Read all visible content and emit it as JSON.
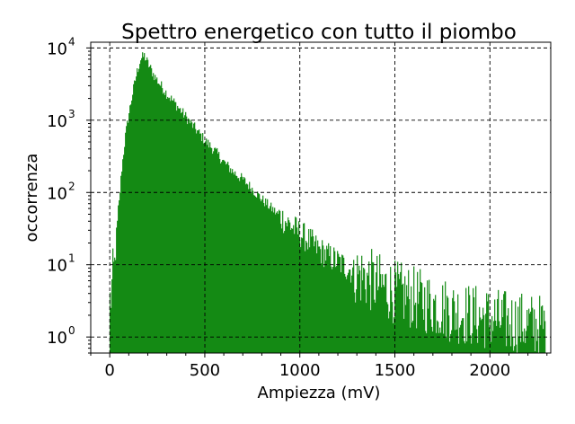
{
  "chart_data": {
    "type": "bar",
    "subtype": "histogram",
    "title": "Spettro energetico con tutto il piombo",
    "xlabel": "Ampiezza  (mV)",
    "ylabel": "occorrenza",
    "xlim": [
      -100,
      2320
    ],
    "ylim": [
      0.6,
      12000
    ],
    "yscale": "log",
    "grid": true,
    "bar_color": "#008000",
    "xticks": [
      {
        "value": 0,
        "label": "0"
      },
      {
        "value": 500,
        "label": "500"
      },
      {
        "value": 1000,
        "label": "1000"
      },
      {
        "value": 1500,
        "label": "1500"
      },
      {
        "value": 2000,
        "label": "2000"
      }
    ],
    "yticks": [
      {
        "value": 1,
        "base": "10",
        "exp": "0"
      },
      {
        "value": 10,
        "base": "10",
        "exp": "1"
      },
      {
        "value": 100,
        "base": "10",
        "exp": "2"
      },
      {
        "value": 1000,
        "base": "10",
        "exp": "3"
      },
      {
        "value": 10000,
        "base": "10",
        "exp": "4"
      }
    ],
    "profile": {
      "description_points_x": [
        0,
        20,
        40,
        60,
        80,
        100,
        120,
        140,
        160,
        180,
        200,
        230,
        260,
        300,
        350,
        400,
        450,
        500,
        550,
        600,
        650,
        700,
        750,
        800,
        850,
        900,
        950,
        1000,
        1050,
        1100,
        1150,
        1200,
        1250,
        1300,
        1350,
        1400,
        1450,
        1500,
        1600,
        1700,
        1800,
        1900,
        2000,
        2100,
        2200,
        2290
      ],
      "description_points_y": [
        3,
        8,
        40,
        200,
        600,
        1300,
        2500,
        4500,
        7000,
        7800,
        6000,
        4200,
        3200,
        2300,
        1600,
        1100,
        750,
        520,
        380,
        260,
        190,
        150,
        110,
        80,
        60,
        45,
        35,
        27,
        21,
        16,
        13,
        11,
        9,
        7.5,
        6.5,
        5.5,
        4.8,
        4.2,
        3.4,
        2.8,
        2.3,
        2.0,
        1.8,
        1.6,
        1.5,
        1.4
      ]
    }
  }
}
